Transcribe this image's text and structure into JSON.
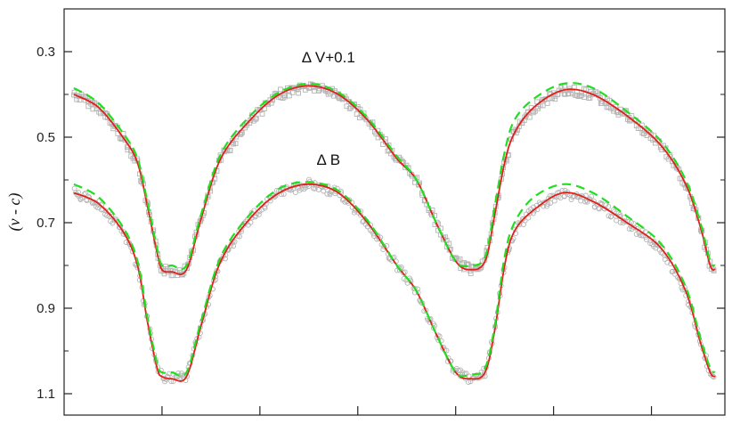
{
  "chart_data": {
    "type": "line",
    "title": "",
    "xlabel": "",
    "ylabel": "(v - c)",
    "ylim": [
      0.2,
      1.15
    ],
    "y_inverted": true,
    "xlim": [
      -0.2,
      1.15
    ],
    "yticks": [
      0.3,
      0.5,
      0.7,
      0.9,
      1.1
    ],
    "yticks_label": [
      "0.3",
      "0.5",
      "0.7",
      "0.9",
      "1.1"
    ],
    "xticks": [
      0.0,
      0.2,
      0.4,
      0.6,
      0.8,
      1.0,
      1.2
    ],
    "grid": false,
    "legend": "none",
    "colors": {
      "observed": "#b4b4b4",
      "model": "#e0201b",
      "reference": "#22dd22"
    },
    "annotations": [
      {
        "text": "Δ V+0.1",
        "x": 0.34,
        "y": 0.325
      },
      {
        "text": "Δ B",
        "x": 0.34,
        "y": 0.565
      }
    ],
    "series": [
      {
        "role": "model",
        "style": "solid",
        "x": [
          -0.18,
          -0.13,
          -0.08,
          -0.05,
          -0.03,
          -0.01,
          0.0,
          0.02,
          0.05,
          0.08,
          0.12,
          0.18,
          0.24,
          0.3,
          0.36,
          0.42,
          0.48,
          0.52,
          0.56,
          0.6,
          0.63,
          0.66,
          0.68,
          0.7,
          0.72,
          0.76,
          0.82,
          0.88,
          0.95,
          1.02,
          1.07,
          1.1,
          1.12,
          1.13
        ],
        "y": [
          0.4,
          0.43,
          0.5,
          0.56,
          0.66,
          0.77,
          0.81,
          0.815,
          0.81,
          0.69,
          0.55,
          0.46,
          0.4,
          0.38,
          0.4,
          0.46,
          0.55,
          0.6,
          0.7,
          0.79,
          0.81,
          0.79,
          0.68,
          0.56,
          0.49,
          0.43,
          0.39,
          0.4,
          0.45,
          0.52,
          0.61,
          0.71,
          0.8,
          0.81
        ]
      },
      {
        "role": "reference",
        "style": "dashed",
        "x": [
          -0.18,
          -0.13,
          -0.08,
          -0.05,
          -0.03,
          -0.01,
          0.0,
          0.02,
          0.05,
          0.08,
          0.12,
          0.18,
          0.24,
          0.3,
          0.36,
          0.42,
          0.48,
          0.52,
          0.56,
          0.6,
          0.63,
          0.66,
          0.68,
          0.7,
          0.72,
          0.76,
          0.82,
          0.88,
          0.95,
          1.02,
          1.07,
          1.1,
          1.12,
          1.13
        ],
        "y": [
          0.385,
          0.42,
          0.49,
          0.55,
          0.65,
          0.76,
          0.8,
          0.8,
          0.8,
          0.68,
          0.54,
          0.45,
          0.395,
          0.375,
          0.395,
          0.455,
          0.545,
          0.6,
          0.7,
          0.79,
          0.8,
          0.78,
          0.66,
          0.535,
          0.46,
          0.41,
          0.375,
          0.385,
          0.44,
          0.51,
          0.6,
          0.7,
          0.79,
          0.8
        ]
      },
      {
        "role": "model",
        "style": "solid",
        "x": [
          -0.18,
          -0.13,
          -0.08,
          -0.05,
          -0.03,
          -0.01,
          0.0,
          0.02,
          0.05,
          0.08,
          0.12,
          0.18,
          0.24,
          0.3,
          0.36,
          0.42,
          0.48,
          0.52,
          0.56,
          0.6,
          0.63,
          0.66,
          0.68,
          0.7,
          0.72,
          0.76,
          0.82,
          0.88,
          0.95,
          1.02,
          1.07,
          1.1,
          1.12,
          1.13
        ],
        "y": [
          0.63,
          0.655,
          0.72,
          0.8,
          0.93,
          1.04,
          1.06,
          1.065,
          1.06,
          0.94,
          0.79,
          0.69,
          0.63,
          0.61,
          0.63,
          0.7,
          0.8,
          0.86,
          0.96,
          1.05,
          1.065,
          1.05,
          0.95,
          0.8,
          0.72,
          0.67,
          0.63,
          0.65,
          0.7,
          0.76,
          0.86,
          0.98,
          1.05,
          1.06
        ]
      },
      {
        "role": "reference",
        "style": "dashed",
        "x": [
          -0.18,
          -0.13,
          -0.08,
          -0.05,
          -0.03,
          -0.01,
          0.0,
          0.02,
          0.05,
          0.08,
          0.12,
          0.18,
          0.24,
          0.3,
          0.36,
          0.42,
          0.48,
          0.52,
          0.56,
          0.6,
          0.63,
          0.66,
          0.68,
          0.7,
          0.72,
          0.76,
          0.82,
          0.88,
          0.95,
          1.02,
          1.07,
          1.1,
          1.12,
          1.13
        ],
        "y": [
          0.61,
          0.64,
          0.71,
          0.79,
          0.92,
          1.03,
          1.05,
          1.05,
          1.05,
          0.93,
          0.78,
          0.68,
          0.62,
          0.605,
          0.625,
          0.695,
          0.8,
          0.86,
          0.96,
          1.05,
          1.055,
          1.04,
          0.94,
          0.78,
          0.7,
          0.64,
          0.61,
          0.63,
          0.685,
          0.75,
          0.85,
          0.97,
          1.04,
          1.05
        ]
      }
    ]
  }
}
